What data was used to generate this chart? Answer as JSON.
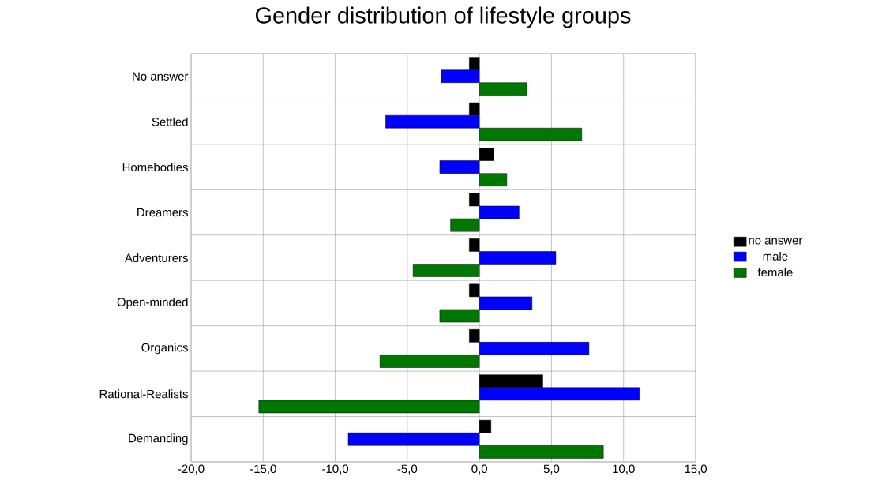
{
  "chart_data": {
    "type": "bar",
    "orientation": "horizontal",
    "title": "Gender distribution of lifestyle groups",
    "categories": [
      "No answer",
      "Settled",
      "Homebodies",
      "Dreamers",
      "Adventurers",
      "Open-minded",
      "Organics",
      "Rational-Realists",
      "Demanding"
    ],
    "series": [
      {
        "name": "no answer",
        "color": "#000000",
        "values": [
          -0.7,
          -0.7,
          1.0,
          -0.7,
          -0.7,
          -0.7,
          -0.7,
          4.4,
          0.8
        ]
      },
      {
        "name": "male",
        "color": "#0000ff",
        "values": [
          -2.65,
          -6.5,
          -2.75,
          2.75,
          5.3,
          3.65,
          7.6,
          11.1,
          -9.1
        ]
      },
      {
        "name": "female",
        "color": "#007700",
        "values": [
          3.3,
          7.1,
          1.9,
          -2.0,
          -4.6,
          -2.75,
          -6.9,
          -15.3,
          8.6
        ]
      }
    ],
    "xlim": [
      -20,
      15
    ],
    "xticks": [
      {
        "value": -20,
        "label": "-20,0"
      },
      {
        "value": -15,
        "label": "-15,0"
      },
      {
        "value": -10,
        "label": "-10,0"
      },
      {
        "value": -5,
        "label": "-5,0"
      },
      {
        "value": 0,
        "label": "0,0"
      },
      {
        "value": 5,
        "label": "5,0"
      },
      {
        "value": 10,
        "label": "10,0"
      },
      {
        "value": 15,
        "label": "15,0"
      }
    ],
    "grid": true,
    "legend": "right"
  }
}
